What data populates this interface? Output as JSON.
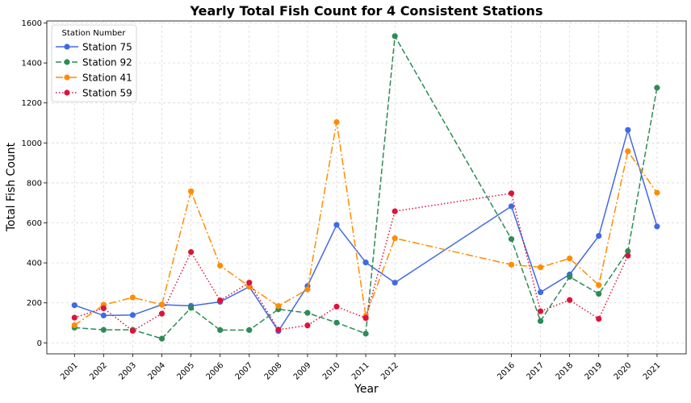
{
  "chart_data": {
    "type": "line",
    "title": "Yearly Total Fish Count for 4 Consistent Stations",
    "xlabel": "Year",
    "ylabel": "Total Fish Count",
    "x_ticks": [
      2001,
      2002,
      2003,
      2004,
      2005,
      2006,
      2007,
      2008,
      2009,
      2010,
      2011,
      2012,
      2016,
      2017,
      2018,
      2019,
      2020,
      2021
    ],
    "y_ticks": [
      0,
      200,
      400,
      600,
      800,
      1000,
      1200,
      1400,
      1600
    ],
    "xlim": [
      2000.05,
      2022.0
    ],
    "ylim": [
      -55,
      1610
    ],
    "grid": true,
    "legend": {
      "title": "Station Number",
      "position": "top-left"
    },
    "series": [
      {
        "name": "Station 75",
        "color": "#4169e1",
        "dash": "solid",
        "x": [
          2001,
          2002,
          2003,
          2004,
          2005,
          2006,
          2007,
          2008,
          2009,
          2010,
          2011,
          2012,
          2016,
          2017,
          2018,
          2019,
          2020,
          2021
        ],
        "y": [
          188,
          137,
          139,
          191,
          185,
          205,
          281,
          59,
          284,
          590,
          402,
          301,
          683,
          253,
          342,
          535,
          1065,
          582
        ]
      },
      {
        "name": "Station 92",
        "color": "#2e8b57",
        "dash": "dashed",
        "x": [
          2001,
          2002,
          2003,
          2004,
          2005,
          2006,
          2007,
          2008,
          2009,
          2010,
          2011,
          2012,
          2016,
          2017,
          2018,
          2019,
          2020,
          2021
        ],
        "y": [
          76,
          65,
          65,
          21,
          175,
          64,
          64,
          168,
          150,
          101,
          46,
          1534,
          519,
          109,
          330,
          245,
          459,
          1276
        ]
      },
      {
        "name": "Station 41",
        "color": "#ff8c00",
        "dash": "dashdot",
        "x": [
          2001,
          2002,
          2003,
          2004,
          2005,
          2006,
          2007,
          2008,
          2009,
          2010,
          2011,
          2012,
          2016,
          2017,
          2018,
          2019,
          2020,
          2021
        ],
        "y": [
          88,
          190,
          227,
          191,
          758,
          386,
          282,
          184,
          267,
          1104,
          135,
          523,
          391,
          378,
          422,
          289,
          958,
          751
        ]
      },
      {
        "name": "Station 59",
        "color": "#dc143c",
        "dash": "dotted",
        "x": [
          2001,
          2002,
          2003,
          2004,
          2005,
          2006,
          2007,
          2008,
          2009,
          2010,
          2011,
          2012,
          2016,
          2017,
          2018,
          2019,
          2020
        ],
        "y": [
          126,
          173,
          60,
          146,
          454,
          212,
          301,
          66,
          87,
          181,
          124,
          658,
          748,
          158,
          214,
          120,
          436
        ]
      }
    ]
  }
}
